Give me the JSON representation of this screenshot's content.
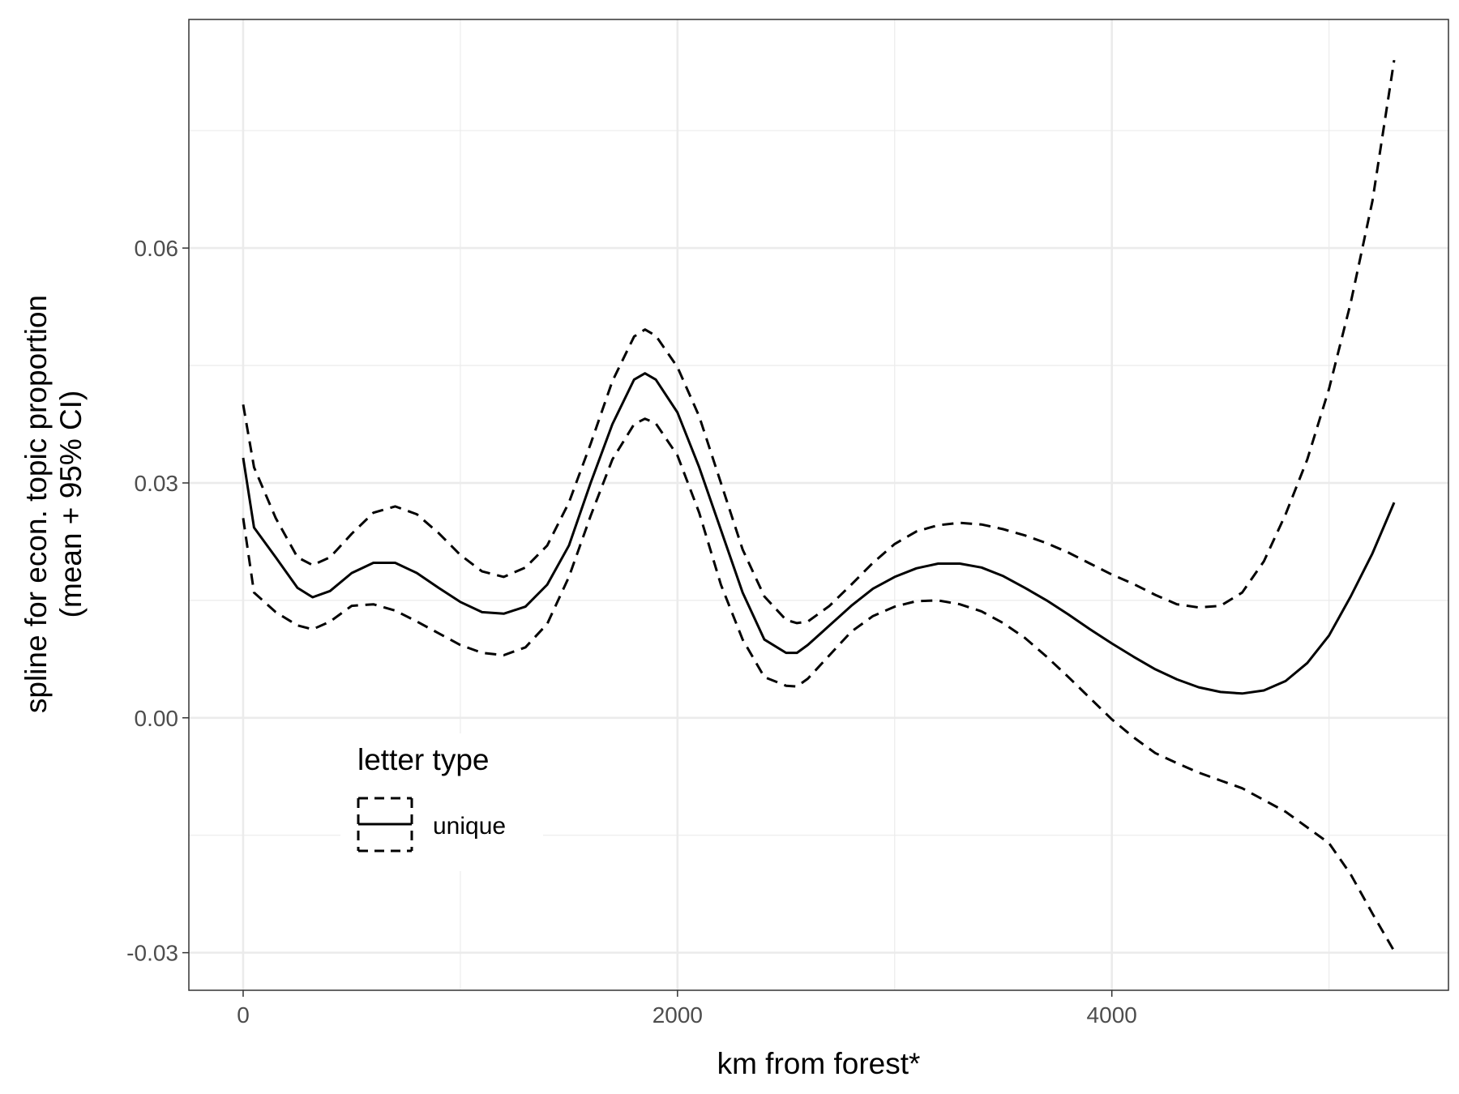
{
  "chart_data": {
    "type": "line",
    "xlabel": "km from forest*",
    "ylabel_line1": "spline for econ. topic proportion",
    "ylabel_line2": "(mean + 95% CI)",
    "xlim": [
      -250,
      5550
    ],
    "ylim": [
      -0.0348,
      0.0892
    ],
    "x_ticks": [
      0,
      2000,
      4000
    ],
    "x_tick_labels": [
      "0",
      "2000",
      "4000"
    ],
    "x_minor_ticks": [
      1000,
      3000,
      5000
    ],
    "y_ticks": [
      -0.03,
      0.0,
      0.03,
      0.06
    ],
    "y_tick_labels": [
      "-0.03",
      "0.00",
      "0.03",
      "0.06"
    ],
    "y_minor_ticks": [
      -0.015,
      0.015,
      0.045,
      0.075
    ],
    "grid": true,
    "legend": {
      "title": "letter type",
      "entries": [
        "unique"
      ],
      "placement": "bottom-left-inside"
    },
    "series": [
      {
        "name": "unique",
        "role": "mean",
        "linetype": "solid",
        "x": [
          0,
          50,
          150,
          250,
          320,
          400,
          500,
          600,
          700,
          800,
          900,
          1000,
          1100,
          1200,
          1300,
          1400,
          1500,
          1600,
          1700,
          1800,
          1850,
          1900,
          2000,
          2100,
          2200,
          2300,
          2400,
          2500,
          2550,
          2600,
          2700,
          2800,
          2900,
          3000,
          3100,
          3200,
          3300,
          3400,
          3500,
          3600,
          3700,
          3800,
          3900,
          4000,
          4100,
          4200,
          4300,
          4400,
          4500,
          4600,
          4700,
          4800,
          4900,
          5000,
          5100,
          5200,
          5300
        ],
        "y": [
          0.0332,
          0.0243,
          0.0205,
          0.0166,
          0.0154,
          0.0162,
          0.0185,
          0.0198,
          0.0198,
          0.0185,
          0.0166,
          0.0148,
          0.0135,
          0.0133,
          0.0142,
          0.017,
          0.022,
          0.03,
          0.0375,
          0.0432,
          0.044,
          0.0432,
          0.039,
          0.032,
          0.024,
          0.016,
          0.01,
          0.0083,
          0.0083,
          0.0093,
          0.0118,
          0.0143,
          0.0165,
          0.018,
          0.0191,
          0.0197,
          0.0197,
          0.0192,
          0.0181,
          0.0166,
          0.015,
          0.0132,
          0.0113,
          0.0095,
          0.0078,
          0.0062,
          0.0049,
          0.0039,
          0.0033,
          0.0031,
          0.0035,
          0.0047,
          0.007,
          0.0105,
          0.0155,
          0.021,
          0.0275
        ]
      },
      {
        "name": "unique",
        "role": "upper 95% CI",
        "linetype": "dashed",
        "x": [
          0,
          50,
          150,
          250,
          320,
          400,
          500,
          600,
          700,
          800,
          900,
          1000,
          1100,
          1200,
          1300,
          1400,
          1500,
          1600,
          1700,
          1800,
          1850,
          1900,
          2000,
          2100,
          2200,
          2300,
          2400,
          2500,
          2550,
          2600,
          2700,
          2800,
          2900,
          3000,
          3100,
          3200,
          3300,
          3400,
          3500,
          3600,
          3700,
          3800,
          3900,
          4000,
          4100,
          4200,
          4300,
          4400,
          4500,
          4600,
          4700,
          4800,
          4900,
          5000,
          5100,
          5200,
          5300
        ],
        "y": [
          0.04,
          0.032,
          0.0255,
          0.0205,
          0.0195,
          0.0205,
          0.0235,
          0.0262,
          0.027,
          0.026,
          0.0236,
          0.0208,
          0.0187,
          0.018,
          0.0192,
          0.022,
          0.0275,
          0.035,
          0.043,
          0.0487,
          0.0496,
          0.0488,
          0.0448,
          0.0385,
          0.03,
          0.0215,
          0.0155,
          0.0125,
          0.0121,
          0.0123,
          0.0143,
          0.017,
          0.0198,
          0.0222,
          0.0238,
          0.0246,
          0.0249,
          0.0247,
          0.0241,
          0.0233,
          0.0223,
          0.0211,
          0.0197,
          0.0183,
          0.0171,
          0.0157,
          0.0145,
          0.0141,
          0.0143,
          0.016,
          0.02,
          0.026,
          0.033,
          0.042,
          0.053,
          0.066,
          0.084
        ]
      },
      {
        "name": "unique",
        "role": "lower 95% CI",
        "linetype": "dashed",
        "x": [
          0,
          50,
          150,
          250,
          320,
          400,
          500,
          600,
          700,
          800,
          900,
          1000,
          1100,
          1200,
          1300,
          1400,
          1500,
          1600,
          1700,
          1800,
          1850,
          1900,
          2000,
          2100,
          2200,
          2300,
          2400,
          2500,
          2550,
          2600,
          2700,
          2800,
          2900,
          3000,
          3100,
          3200,
          3300,
          3400,
          3500,
          3600,
          3700,
          3800,
          3900,
          4000,
          4100,
          4200,
          4300,
          4400,
          4500,
          4600,
          4700,
          4800,
          4900,
          5000,
          5100,
          5200,
          5300
        ],
        "y": [
          0.0255,
          0.016,
          0.0135,
          0.0118,
          0.0113,
          0.0123,
          0.0143,
          0.0145,
          0.0137,
          0.0123,
          0.0108,
          0.0093,
          0.0083,
          0.008,
          0.009,
          0.012,
          0.018,
          0.0258,
          0.033,
          0.0375,
          0.0382,
          0.0376,
          0.0335,
          0.0262,
          0.017,
          0.01,
          0.0052,
          0.0041,
          0.004,
          0.005,
          0.008,
          0.011,
          0.013,
          0.0142,
          0.0149,
          0.015,
          0.0145,
          0.0136,
          0.0121,
          0.0102,
          0.0078,
          0.0052,
          0.0025,
          -0.0002,
          -0.0025,
          -0.0045,
          -0.0058,
          -0.007,
          -0.008,
          -0.009,
          -0.0105,
          -0.012,
          -0.014,
          -0.016,
          -0.02,
          -0.025,
          -0.0298
        ]
      }
    ]
  }
}
